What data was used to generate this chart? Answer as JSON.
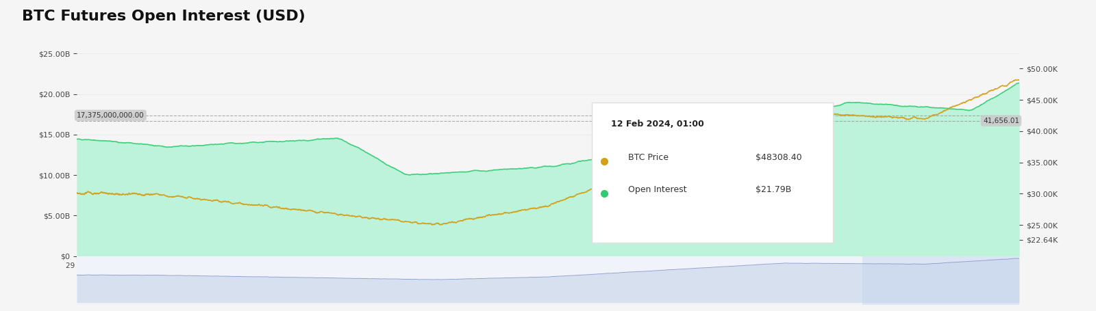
{
  "title": "BTC Futures Open Interest (USD)",
  "title_fontsize": 16,
  "title_fontweight": "bold",
  "background_color": "#f5f5f5",
  "plot_bg_color": "#f5f5f5",
  "legend_items": [
    "BTC Price",
    "Open Interest"
  ],
  "legend_colors": [
    "#d4a017",
    "#2ecc71"
  ],
  "left_ylabel": "",
  "right_ylabel": "",
  "left_yticks": [
    0,
    5000000000.0,
    10000000000.0,
    15000000000.0,
    20000000000.0,
    25000000000.0
  ],
  "left_ytick_labels": [
    "$0",
    "$5.00B",
    "$10.00B",
    "$15.00B",
    "$20.00B",
    "$25.00B"
  ],
  "right_yticks": [
    22640,
    25000,
    30000,
    35000,
    40000,
    45000,
    50000
  ],
  "right_ytick_labels": [
    "$22.64K",
    "$25.00K",
    "$30.00K",
    "$35.00K",
    "$40.00K",
    "$45.00K",
    "$50.00K"
  ],
  "oi_color": "#2ecc71",
  "oi_fill_color_top": "#aaf0d1",
  "oi_fill_color_bottom": "#e8faf2",
  "btc_color": "#d4a017",
  "hline_value_oi": 17375000000.0,
  "hline_label_oi": "17,375,000,000.00",
  "hline_value_price": 41656.01,
  "hline_label_price": "41,656.01",
  "tooltip_date": "12 Feb 2024, 01:00",
  "tooltip_btc_price": "$48308.40",
  "tooltip_oi": "$21.79B",
  "minimap_color": "#b0c4de",
  "minimap_fill": "#d6e4f7"
}
